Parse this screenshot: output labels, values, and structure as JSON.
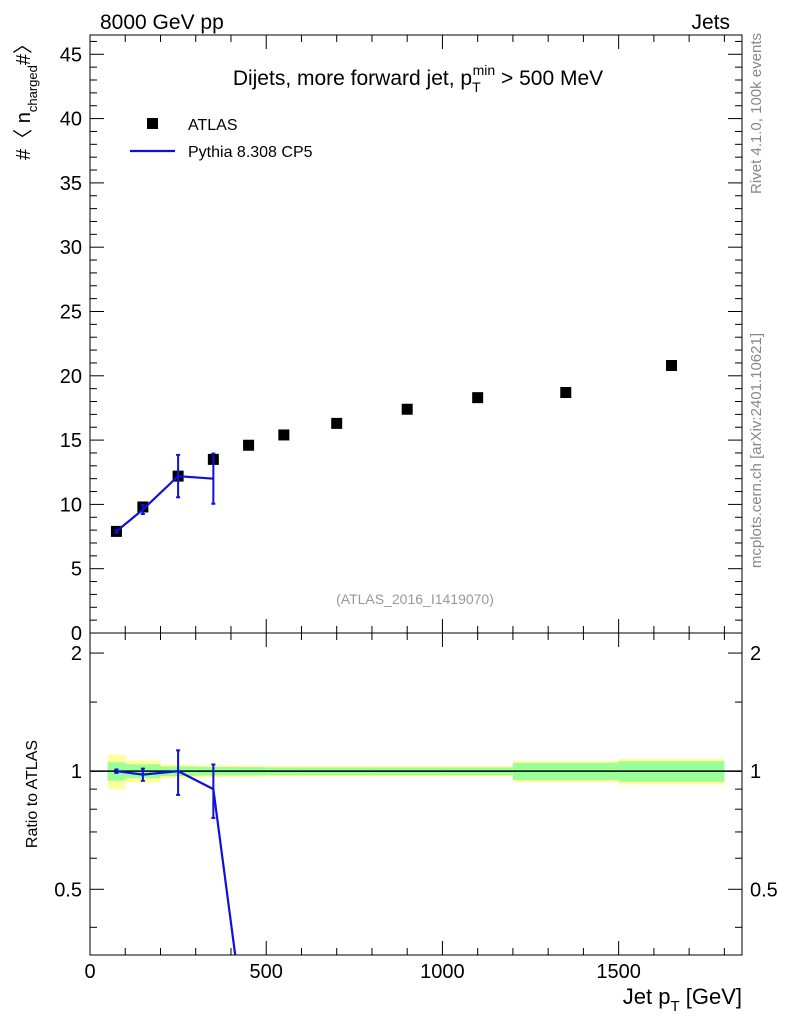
{
  "header": {
    "left": "8000 GeV pp",
    "right": "Jets"
  },
  "side_labels": {
    "rivet": "Rivet 4.1.0,  100k events",
    "mcplots": "mcplots.cern.ch [arXiv:2401.10621]"
  },
  "chart_data": {
    "type": "scatter",
    "title": {
      "main": "Dijets, more forward jet, p",
      "sub": "T",
      "sup": "min",
      "rest": " > 500 MeV"
    },
    "analysis_tag": "(ATLAS_2016_I1419070)",
    "xlabel": {
      "main": "Jet p",
      "sub": "T",
      "rest": " [GeV]"
    },
    "ylabel": {
      "pre": "#〈 n",
      "sub": "charged",
      "post": "#〉"
    },
    "ratio_ylabel": "Ratio to ATLAS",
    "xlim": [
      0,
      1850
    ],
    "ylim": [
      0,
      46.5
    ],
    "ratio_ylim": [
      0.34,
      2.25
    ],
    "x_ticks": [
      0,
      500,
      1000,
      1500
    ],
    "x_tick_labels": [
      "0",
      "500",
      "1000",
      "1500"
    ],
    "y_ticks": [
      0,
      5,
      10,
      15,
      20,
      25,
      30,
      35,
      40,
      45
    ],
    "y_tick_labels": [
      "0",
      "5",
      "10",
      "15",
      "20",
      "25",
      "30",
      "35",
      "40",
      "45"
    ],
    "ratio_ticks": [
      0.5,
      1,
      2
    ],
    "ratio_tick_labels": [
      "0.5",
      "1",
      "2"
    ],
    "legend": [
      "ATLAS",
      "Pythia 8.308 CP5"
    ],
    "series": [
      {
        "name": "ATLAS",
        "x": [
          75,
          150,
          250,
          350,
          450,
          550,
          700,
          900,
          1100,
          1350,
          1650
        ],
        "y": [
          7.9,
          9.8,
          12.2,
          13.5,
          14.6,
          15.4,
          16.3,
          17.4,
          18.3,
          18.7,
          20.8
        ],
        "bin_edges": [
          50,
          100,
          200,
          300,
          400,
          500,
          600,
          800,
          1000,
          1200,
          1500,
          1800
        ],
        "ratio_band_stat": [
          0.054,
          0.04,
          0.028,
          0.025,
          0.024,
          0.022,
          0.022,
          0.022,
          0.022,
          0.05,
          0.06
        ],
        "ratio_band_total": [
          0.1,
          0.065,
          0.04,
          0.035,
          0.033,
          0.03,
          0.03,
          0.03,
          0.03,
          0.062,
          0.075
        ]
      },
      {
        "name": "Pythia 8.308 CP5",
        "x": [
          75,
          150,
          250,
          350
        ],
        "y": [
          7.9,
          9.6,
          12.2,
          12.0
        ],
        "y_err": [
          0.1,
          0.35,
          1.65,
          1.95
        ],
        "ratio": [
          1.0,
          0.98,
          1.0,
          0.9
        ],
        "ratio_err": [
          0.01,
          0.035,
          0.13,
          0.14
        ],
        "ratio_tail": {
          "x": 420,
          "y": 0.3
        }
      }
    ]
  }
}
